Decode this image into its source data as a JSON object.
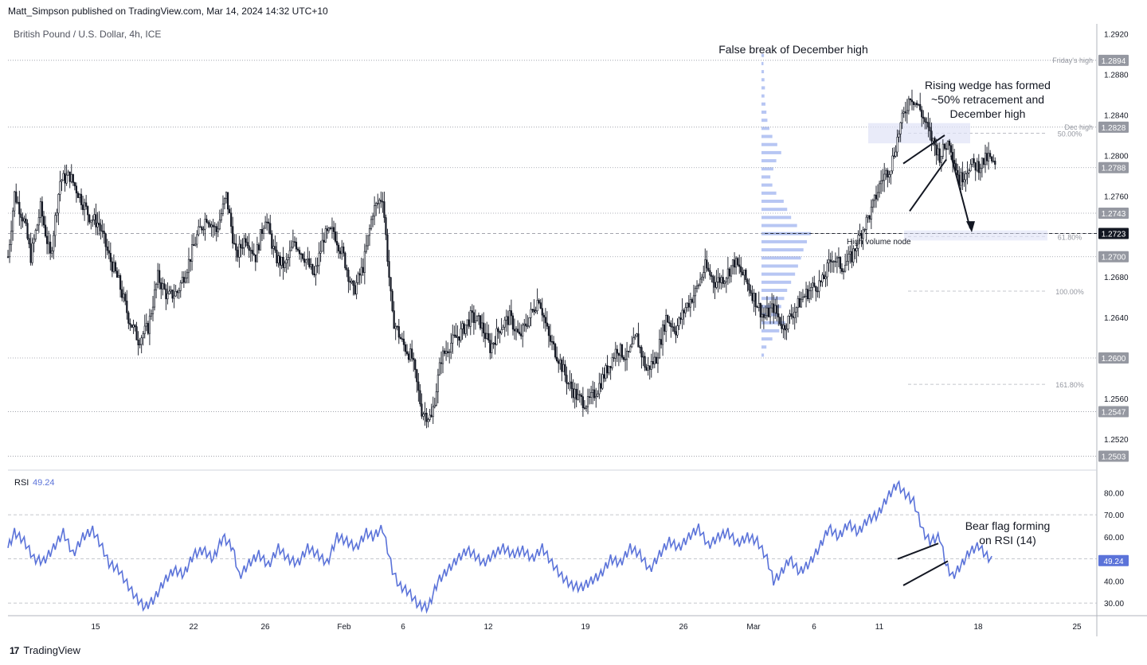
{
  "header": {
    "publisher_line": "Matt_Simpson published on TradingView.com, Mar 14, 2024 14:32 UTC+10",
    "symbol_line": "British Pound / U.S. Dollar, 4h, ICE"
  },
  "footer": {
    "brand": "TradingView",
    "logo_text": "17"
  },
  "chart_data": [
    {
      "type": "candlestick",
      "title": "British Pound / U.S. Dollar, 4h, ICE",
      "y_range": [
        1.249,
        1.293
      ],
      "y_ticks": [
        "1.2920",
        "1.2880",
        "1.2840",
        "1.2800",
        "1.2760",
        "1.2680",
        "1.2640",
        "1.2560",
        "1.2520"
      ],
      "x_tick_labels": [
        "15",
        "22",
        "26",
        "Feb",
        "6",
        "12",
        "19",
        "26",
        "Mar",
        "6",
        "11",
        "18",
        "25"
      ],
      "bars_per_day": 6,
      "price_path": [
        [
          0,
          1.27
        ],
        [
          4,
          1.2762
        ],
        [
          10,
          1.2735
        ],
        [
          14,
          1.27
        ],
        [
          20,
          1.2748
        ],
        [
          26,
          1.27
        ],
        [
          32,
          1.2775
        ],
        [
          38,
          1.278
        ],
        [
          44,
          1.276
        ],
        [
          50,
          1.274
        ],
        [
          56,
          1.2732
        ],
        [
          62,
          1.27
        ],
        [
          68,
          1.2675
        ],
        [
          74,
          1.264
        ],
        [
          80,
          1.2618
        ],
        [
          86,
          1.263
        ],
        [
          92,
          1.268
        ],
        [
          98,
          1.266
        ],
        [
          104,
          1.2665
        ],
        [
          110,
          1.269
        ],
        [
          116,
          1.272
        ],
        [
          122,
          1.274
        ],
        [
          128,
          1.2725
        ],
        [
          134,
          1.276
        ],
        [
          140,
          1.27
        ],
        [
          146,
          1.272
        ],
        [
          152,
          1.27
        ],
        [
          158,
          1.274
        ],
        [
          164,
          1.27
        ],
        [
          170,
          1.269
        ],
        [
          176,
          1.2715
        ],
        [
          182,
          1.27
        ],
        [
          188,
          1.268
        ],
        [
          194,
          1.272
        ],
        [
          200,
          1.2725
        ],
        [
          206,
          1.27
        ],
        [
          212,
          1.2665
        ],
        [
          218,
          1.269
        ],
        [
          224,
          1.2745
        ],
        [
          230,
          1.276
        ],
        [
          236,
          1.264
        ],
        [
          242,
          1.2615
        ],
        [
          248,
          1.26
        ],
        [
          254,
          1.2548
        ],
        [
          260,
          1.254
        ],
        [
          266,
          1.26
        ],
        [
          272,
          1.2615
        ],
        [
          278,
          1.2625
        ],
        [
          284,
          1.264
        ],
        [
          290,
          1.2635
        ],
        [
          296,
          1.261
        ],
        [
          302,
          1.263
        ],
        [
          308,
          1.264
        ],
        [
          314,
          1.262
        ],
        [
          320,
          1.264
        ],
        [
          326,
          1.266
        ],
        [
          332,
          1.262
        ],
        [
          338,
          1.26
        ],
        [
          344,
          1.2575
        ],
        [
          350,
          1.256
        ],
        [
          356,
          1.2555
        ],
        [
          362,
          1.257
        ],
        [
          368,
          1.259
        ],
        [
          374,
          1.261
        ],
        [
          380,
          1.26
        ],
        [
          386,
          1.262
        ],
        [
          392,
          1.2588
        ],
        [
          398,
          1.26
        ],
        [
          404,
          1.264
        ],
        [
          410,
          1.2628
        ],
        [
          416,
          1.265
        ],
        [
          422,
          1.2665
        ],
        [
          428,
          1.269
        ],
        [
          434,
          1.2675
        ],
        [
          440,
          1.268
        ],
        [
          446,
          1.2695
        ],
        [
          452,
          1.268
        ],
        [
          458,
          1.266
        ],
        [
          464,
          1.264
        ],
        [
          470,
          1.265
        ],
        [
          476,
          1.263
        ],
        [
          482,
          1.2645
        ],
        [
          488,
          1.266
        ],
        [
          494,
          1.267
        ],
        [
          500,
          1.2675
        ],
        [
          506,
          1.27
        ],
        [
          512,
          1.269
        ],
        [
          518,
          1.27
        ],
        [
          524,
          1.2725
        ],
        [
          530,
          1.2745
        ],
        [
          536,
          1.2775
        ],
        [
          542,
          1.279
        ],
        [
          548,
          1.283
        ],
        [
          554,
          1.286
        ],
        [
          560,
          1.2845
        ],
        [
          566,
          1.282
        ],
        [
          572,
          1.28
        ],
        [
          578,
          1.2815
        ],
        [
          584,
          1.2775
        ],
        [
          590,
          1.279
        ],
        [
          596,
          1.279
        ],
        [
          602,
          1.2798
        ],
        [
          606,
          1.2788
        ]
      ],
      "key_levels": [
        {
          "label": "Friday's high",
          "price": 1.2894,
          "text": "1.2894"
        },
        {
          "label": "Dec high",
          "price": 1.2828,
          "text": "1.2828"
        },
        {
          "label": "",
          "price": 1.2788,
          "text": "1.2788"
        },
        {
          "label": "",
          "price": 1.2743,
          "text": "1.2743"
        },
        {
          "label": "",
          "price": 1.2723,
          "text": "1.2723"
        },
        {
          "label": "",
          "price": 1.27,
          "text": "1.2700"
        },
        {
          "label": "",
          "price": 1.26,
          "text": "1.2600"
        },
        {
          "label": "",
          "price": 1.2547,
          "text": "1.2547"
        },
        {
          "label": "",
          "price": 1.2503,
          "text": "1.2503"
        }
      ],
      "fib_levels": [
        {
          "label": "50.00%",
          "price": 1.2822
        },
        {
          "label": "61.80%",
          "price": 1.272
        },
        {
          "label": "100.00%",
          "price": 1.2666
        },
        {
          "label": "161.80%",
          "price": 1.2574
        }
      ],
      "annotations": {
        "false_break": "False break of December high",
        "wedge": [
          "Rising wedge has formed",
          "~50% retracement and",
          "December high"
        ],
        "high_volume_node": "High volume node"
      }
    },
    {
      "type": "line",
      "title": "RSI",
      "value_label": "49.24",
      "value": 49.24,
      "y_range": [
        25,
        87
      ],
      "y_ticks": [
        "80.00",
        "70.00",
        "60.00",
        "40.00",
        "30.00"
      ],
      "reference_lines": [
        70,
        50,
        30
      ],
      "rsi_path": [
        [
          0,
          55
        ],
        [
          4,
          62
        ],
        [
          10,
          58
        ],
        [
          16,
          50
        ],
        [
          22,
          49
        ],
        [
          28,
          55
        ],
        [
          34,
          62
        ],
        [
          40,
          52
        ],
        [
          46,
          60
        ],
        [
          52,
          63
        ],
        [
          58,
          55
        ],
        [
          62,
          48
        ],
        [
          68,
          45
        ],
        [
          72,
          40
        ],
        [
          78,
          33
        ],
        [
          84,
          28
        ],
        [
          90,
          32
        ],
        [
          96,
          40
        ],
        [
          102,
          45
        ],
        [
          108,
          43
        ],
        [
          114,
          52
        ],
        [
          120,
          54
        ],
        [
          126,
          50
        ],
        [
          132,
          60
        ],
        [
          138,
          55
        ],
        [
          142,
          42
        ],
        [
          148,
          48
        ],
        [
          154,
          52
        ],
        [
          160,
          47
        ],
        [
          166,
          55
        ],
        [
          172,
          50
        ],
        [
          178,
          48
        ],
        [
          184,
          55
        ],
        [
          190,
          52
        ],
        [
          196,
          48
        ],
        [
          202,
          60
        ],
        [
          208,
          58
        ],
        [
          214,
          55
        ],
        [
          220,
          62
        ],
        [
          224,
          60
        ],
        [
          230,
          64
        ],
        [
          236,
          45
        ],
        [
          240,
          38
        ],
        [
          246,
          35
        ],
        [
          252,
          29
        ],
        [
          258,
          28
        ],
        [
          264,
          40
        ],
        [
          270,
          45
        ],
        [
          276,
          50
        ],
        [
          282,
          54
        ],
        [
          286,
          52
        ],
        [
          292,
          48
        ],
        [
          298,
          52
        ],
        [
          304,
          55
        ],
        [
          310,
          52
        ],
        [
          316,
          54
        ],
        [
          322,
          50
        ],
        [
          328,
          55
        ],
        [
          334,
          48
        ],
        [
          340,
          42
        ],
        [
          346,
          38
        ],
        [
          352,
          37
        ],
        [
          358,
          40
        ],
        [
          364,
          43
        ],
        [
          370,
          50
        ],
        [
          376,
          48
        ],
        [
          382,
          55
        ],
        [
          388,
          52
        ],
        [
          394,
          45
        ],
        [
          400,
          52
        ],
        [
          406,
          58
        ],
        [
          412,
          55
        ],
        [
          418,
          60
        ],
        [
          424,
          64
        ],
        [
          430,
          56
        ],
        [
          436,
          60
        ],
        [
          442,
          62
        ],
        [
          448,
          57
        ],
        [
          454,
          60
        ],
        [
          460,
          58
        ],
        [
          466,
          50
        ],
        [
          470,
          40
        ],
        [
          474,
          43
        ],
        [
          480,
          50
        ],
        [
          486,
          44
        ],
        [
          492,
          48
        ],
        [
          498,
          55
        ],
        [
          504,
          64
        ],
        [
          510,
          60
        ],
        [
          516,
          66
        ],
        [
          522,
          62
        ],
        [
          528,
          68
        ],
        [
          534,
          70
        ],
        [
          540,
          78
        ],
        [
          546,
          84
        ],
        [
          550,
          80
        ],
        [
          556,
          76
        ],
        [
          562,
          62
        ],
        [
          566,
          58
        ],
        [
          572,
          60
        ],
        [
          576,
          47
        ],
        [
          580,
          42
        ],
        [
          586,
          48
        ],
        [
          590,
          53
        ],
        [
          596,
          56
        ],
        [
          600,
          52
        ],
        [
          604,
          49.24
        ]
      ],
      "annotation": [
        "Bear flag forming",
        "on RSI (14)"
      ]
    }
  ],
  "volume_profile": [
    [
      1.2898,
      0.05
    ],
    [
      1.289,
      0.04
    ],
    [
      1.2882,
      0.05
    ],
    [
      1.2874,
      0.06
    ],
    [
      1.2866,
      0.07
    ],
    [
      1.2858,
      0.06
    ],
    [
      1.285,
      0.08
    ],
    [
      1.2842,
      0.1
    ],
    [
      1.2834,
      0.12
    ],
    [
      1.2826,
      0.16
    ],
    [
      1.2818,
      0.22
    ],
    [
      1.281,
      0.32
    ],
    [
      1.2802,
      0.4
    ],
    [
      1.2794,
      0.3
    ],
    [
      1.2786,
      0.24
    ],
    [
      1.2778,
      0.18
    ],
    [
      1.277,
      0.22
    ],
    [
      1.2762,
      0.3
    ],
    [
      1.2754,
      0.45
    ],
    [
      1.2746,
      0.52
    ],
    [
      1.2738,
      0.6
    ],
    [
      1.273,
      0.72
    ],
    [
      1.2722,
      1.0
    ],
    [
      1.2714,
      0.92
    ],
    [
      1.2706,
      0.85
    ],
    [
      1.2698,
      0.8
    ],
    [
      1.269,
      0.74
    ],
    [
      1.2682,
      0.68
    ],
    [
      1.2674,
      0.6
    ],
    [
      1.2666,
      0.52
    ],
    [
      1.2658,
      0.46
    ],
    [
      1.265,
      0.4
    ],
    [
      1.2642,
      0.34
    ],
    [
      1.2634,
      0.48
    ],
    [
      1.2626,
      0.36
    ],
    [
      1.2618,
      0.22
    ],
    [
      1.261,
      0.1
    ],
    [
      1.2602,
      0.05
    ]
  ]
}
